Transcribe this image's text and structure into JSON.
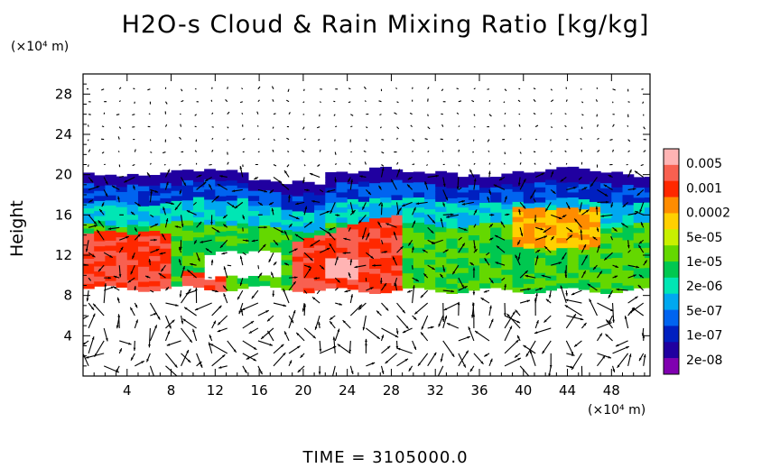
{
  "chart_data": {
    "type": "heatmap",
    "title": "H2O-s Cloud & Rain Mixing Ratio [kg/kg]",
    "ylabel": "Height",
    "y_unit": "(×10⁴ m)",
    "x_unit": "(×10⁴ m)",
    "xlim": [
      0,
      51.5
    ],
    "ylim": [
      0,
      30
    ],
    "x_ticks": [
      4,
      8,
      12,
      16,
      20,
      24,
      28,
      32,
      36,
      40,
      44,
      48
    ],
    "y_ticks": [
      4,
      8,
      12,
      16,
      20,
      24,
      28
    ],
    "colorbar": {
      "labels": [
        "0.005",
        "0.001",
        "0.0002",
        "5e-05",
        "1e-05",
        "2e-06",
        "5e-07",
        "1e-07",
        "2e-08"
      ],
      "colors": [
        "#ffb4b4",
        "#f86050",
        "#ff2800",
        "#ff8c00",
        "#ffd000",
        "#c8f000",
        "#64d800",
        "#00c850",
        "#00e6b4",
        "#00a8f0",
        "#0064f0",
        "#0020c0",
        "#2000a0",
        "#8000b0"
      ]
    },
    "cloud_band": {
      "base": 8.5,
      "top": 20
    },
    "footer": "TIME = 3105000.0"
  }
}
